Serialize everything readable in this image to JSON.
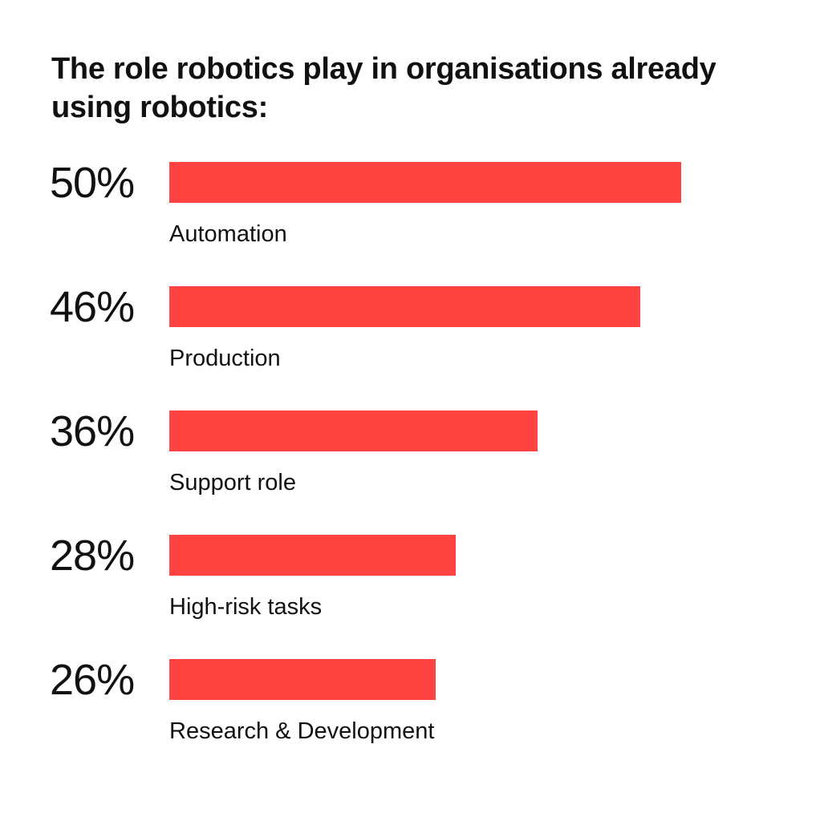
{
  "title": "The role robotics play in organisations already using robotics:",
  "colors": {
    "bar": "#fe4340",
    "text": "#111111",
    "background": "#ffffff"
  },
  "rows": [
    {
      "pct": "50%",
      "label": "Automation"
    },
    {
      "pct": "46%",
      "label": "Production"
    },
    {
      "pct": "36%",
      "label": "Support role"
    },
    {
      "pct": "28%",
      "label": "High-risk tasks"
    },
    {
      "pct": "26%",
      "label": "Research & Development"
    }
  ],
  "chart_data": {
    "type": "bar",
    "orientation": "horizontal",
    "title": "The role robotics play in organisations already using robotics:",
    "categories": [
      "Automation",
      "Production",
      "Support role",
      "High-risk tasks",
      "Research & Development"
    ],
    "values": [
      50,
      46,
      36,
      28,
      26
    ],
    "unit": "%",
    "xlabel": "",
    "ylabel": "",
    "grid": false,
    "legend": null,
    "data_labels": [
      "50%",
      "46%",
      "36%",
      "28%",
      "26%"
    ]
  }
}
